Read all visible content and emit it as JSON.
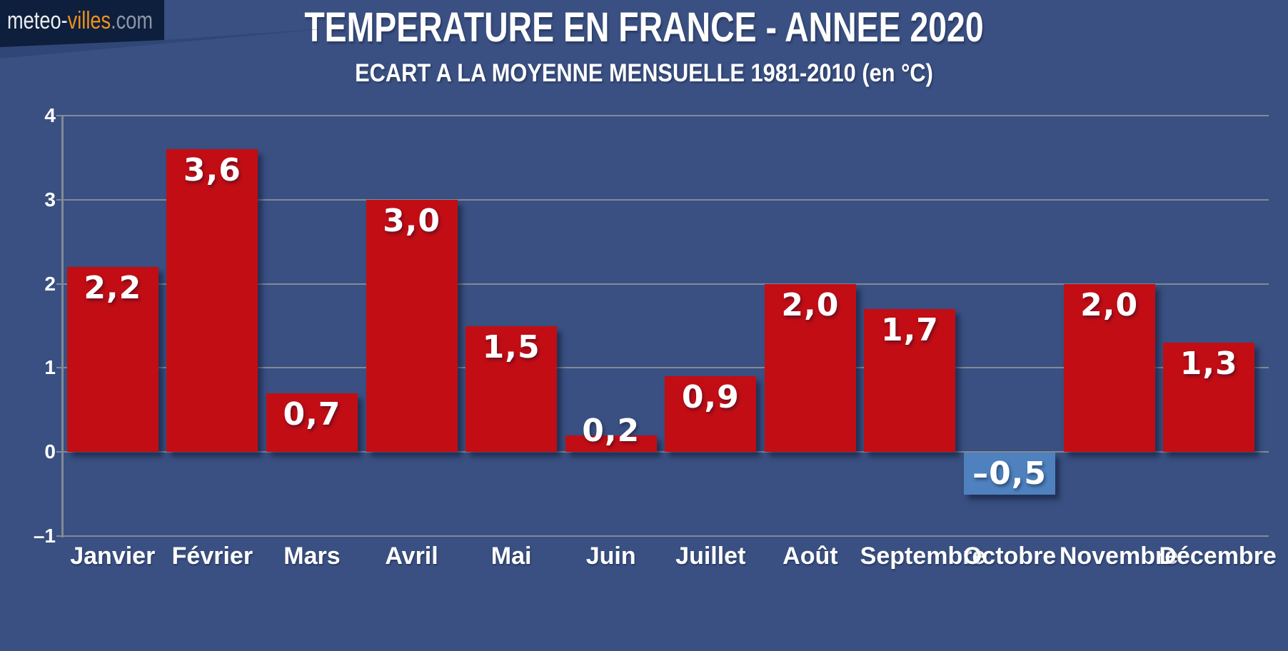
{
  "logo": {
    "part1": "meteo-",
    "part2": "villes",
    "part3": ".com"
  },
  "header": {
    "title": "TEMPERATURE EN FRANCE - ANNEE 2020",
    "subtitle": "ECART A LA MOYENNE MENSUELLE 1981-2010 (en °C)"
  },
  "chart_data": {
    "type": "bar",
    "title": "TEMPERATURE EN FRANCE - ANNEE 2020",
    "subtitle": "ECART A LA MOYENNE MENSUELLE 1981-2010 (en °C)",
    "categories": [
      "Janvier",
      "Février",
      "Mars",
      "Avril",
      "Mai",
      "Juin",
      "Juillet",
      "Août",
      "Septembre",
      "Octobre",
      "Novembre",
      "Décembre"
    ],
    "values": [
      2.2,
      3.6,
      0.7,
      3.0,
      1.5,
      0.2,
      0.9,
      2.0,
      1.7,
      -0.5,
      2.0,
      1.3
    ],
    "value_labels": [
      "2,2",
      "3,6",
      "0,7",
      "3,0",
      "1,5",
      "0,2",
      "0,9",
      "2,0",
      "1,7",
      "–0,5",
      "2,0",
      "1,3"
    ],
    "xlabel": "",
    "ylabel": "",
    "ylim": [
      -1,
      4
    ],
    "yticks": [
      4,
      3,
      2,
      1,
      0,
      -1
    ],
    "ytick_labels": [
      "4",
      "3",
      "2",
      "1",
      "0",
      "–1"
    ],
    "grid": true,
    "legend": false,
    "colors": {
      "positive_bar": "#c20d15",
      "negative_bar": "#4e81be",
      "background": "#3a5082",
      "gridline": "#828a94",
      "label_text": "#ffffff",
      "logo_background": "#0d1f3c",
      "logo_orange": "#f0911d"
    }
  }
}
